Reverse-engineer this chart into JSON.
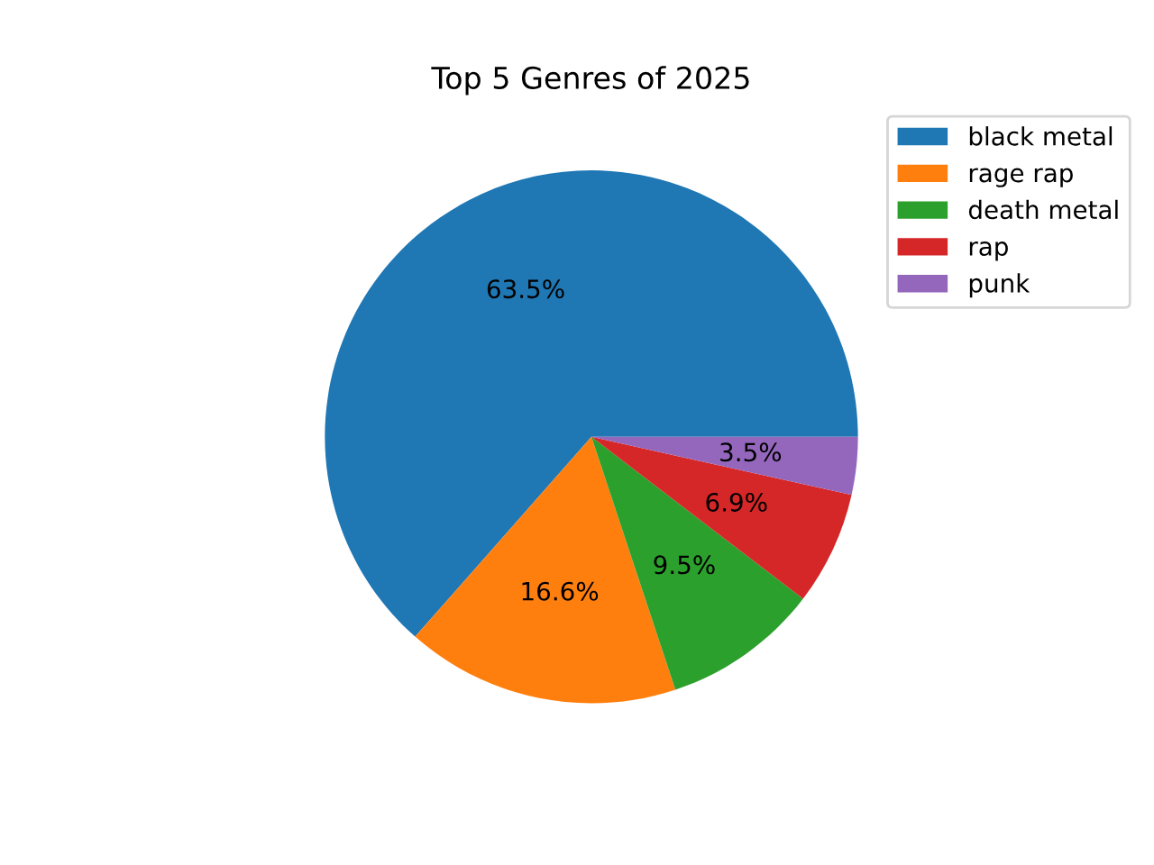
{
  "chart_data": {
    "type": "pie",
    "title": "Top 5 Genres of 2025",
    "categories": [
      "black metal",
      "rage rap",
      "death metal",
      "rap",
      "punk"
    ],
    "values": [
      63.5,
      16.6,
      9.5,
      6.9,
      3.5
    ],
    "colors": [
      "#1f77b4",
      "#ff7f0e",
      "#2ca02c",
      "#d62728",
      "#9467bd"
    ],
    "value_labels": [
      "63.5%",
      "16.6%",
      "9.5%",
      "6.9%",
      "3.5%"
    ],
    "legend": "top right"
  }
}
